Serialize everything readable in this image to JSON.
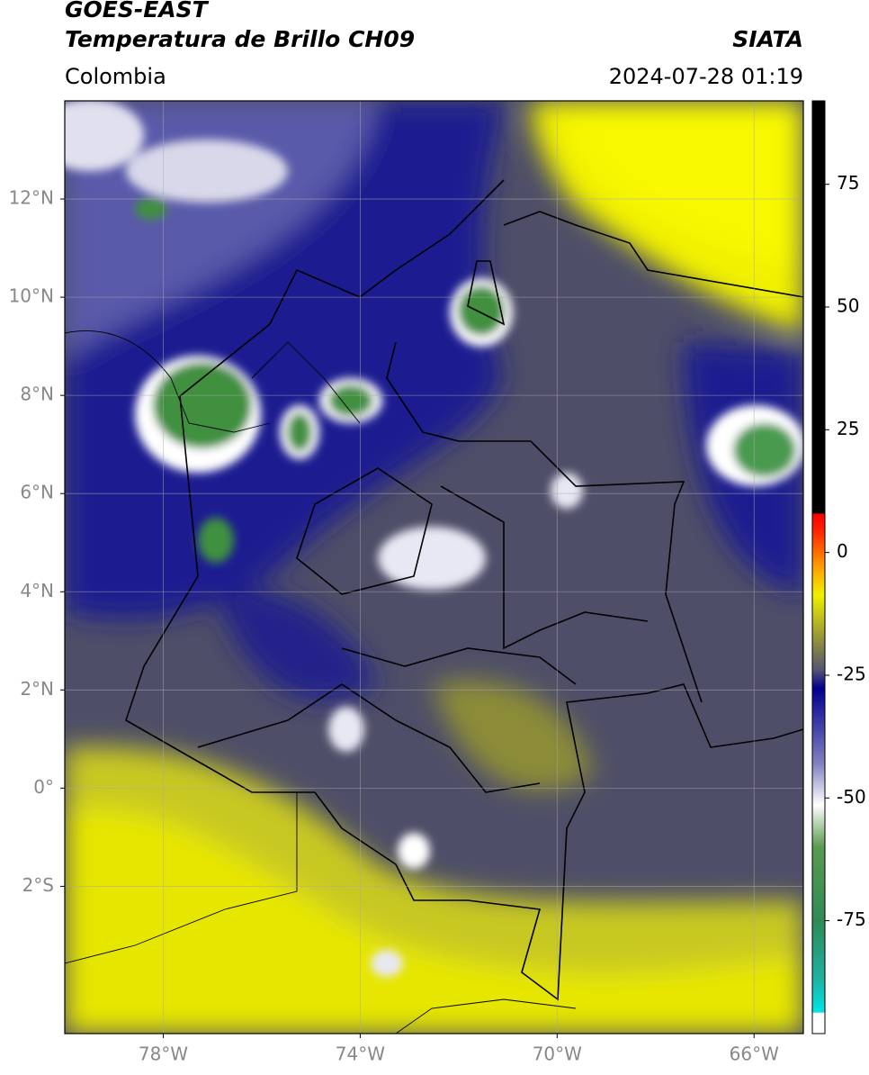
{
  "header": {
    "title": "GOES-EAST",
    "subtitle": "Temperatura de Brillo CH09",
    "source": "SIATA",
    "region": "Colombia",
    "datetime": "2024-07-28 01:19"
  },
  "map": {
    "lonlim": [
      -80,
      -65
    ],
    "latlim": [
      -5,
      14
    ],
    "lonticks": [
      {
        "value": -78,
        "label": "78°W"
      },
      {
        "value": -74,
        "label": "74°W"
      },
      {
        "value": -70,
        "label": "70°W"
      },
      {
        "value": -66,
        "label": "66°W"
      }
    ],
    "latticks": [
      {
        "value": 12,
        "label": "12°N"
      },
      {
        "value": 10,
        "label": "10°N"
      },
      {
        "value": 8,
        "label": "8°N"
      },
      {
        "value": 6,
        "label": "6°N"
      },
      {
        "value": 4,
        "label": "4°N"
      },
      {
        "value": 2,
        "label": "2°N"
      },
      {
        "value": 0,
        "label": "0°"
      },
      {
        "value": -2,
        "label": "2°S"
      }
    ],
    "grid": true
  },
  "colorbar": {
    "lim": [
      -98,
      92
    ],
    "ticks": [
      75,
      50,
      25,
      0,
      -25,
      -50,
      -75
    ]
  }
}
